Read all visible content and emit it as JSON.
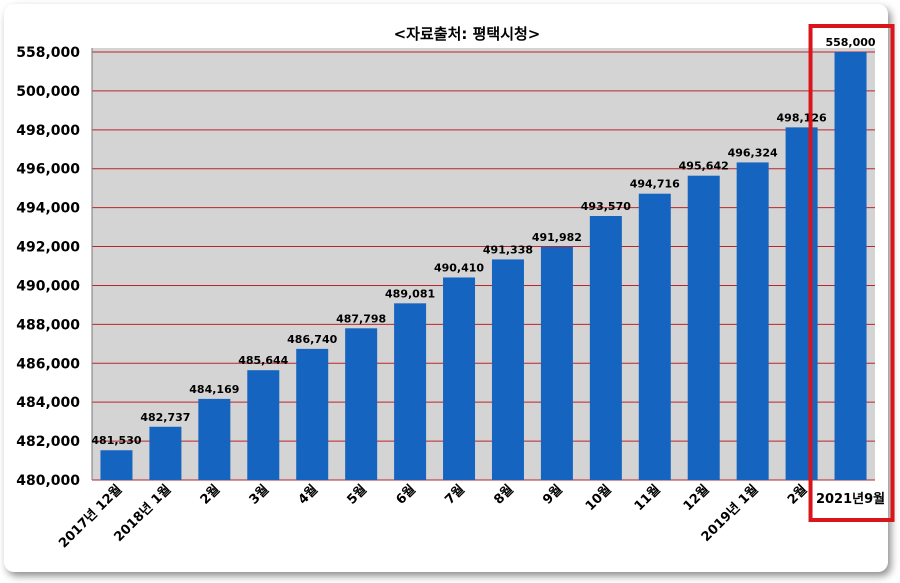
{
  "chart_data": {
    "type": "bar",
    "title": "<자료출처: 평택시청>",
    "categories": [
      "2017년 12월",
      "2018년 1월",
      "2월",
      "3월",
      "4월",
      "5월",
      "6월",
      "7월",
      "8월",
      "9월",
      "10월",
      "11월",
      "12월",
      "2019년 1월",
      "2월",
      "2021년9월"
    ],
    "values": [
      481530,
      482737,
      484169,
      485644,
      486740,
      487798,
      489081,
      490410,
      491338,
      491982,
      493570,
      494716,
      495642,
      496324,
      498126,
      558000
    ],
    "value_labels": [
      "481,530",
      "482,737",
      "484,169",
      "485,644",
      "486,740",
      "487,798",
      "489,081",
      "490,410",
      "491,338",
      "491,982",
      "493,570",
      "494,716",
      "495,642",
      "496,324",
      "498,126",
      "558,000"
    ],
    "ytick_labels": [
      "480,000",
      "482,000",
      "484,000",
      "486,000",
      "488,000",
      "490,000",
      "492,000",
      "494,000",
      "496,000",
      "498,000",
      "500,000",
      "558,000"
    ],
    "ylim": [
      480000,
      558000
    ],
    "grid": true,
    "bar_color": "#1565C0",
    "plot_background": "#d4d4d4",
    "gridline_color": "#b8262b",
    "highlight": {
      "category": "2021년9월",
      "border_color": "#d9141b"
    }
  }
}
